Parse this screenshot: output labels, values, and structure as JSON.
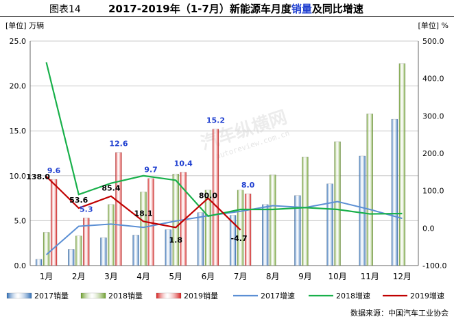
{
  "header": {
    "label": "图表14",
    "title_pre": "2017-2019年（1-7月）新能源车月度",
    "title_hl": "销量",
    "title_post": "及同比增速"
  },
  "units": {
    "left": "[单位] 万辆",
    "right": "[单位] %"
  },
  "source": "数据来源：中国汽车工业协会",
  "watermark": {
    "text": "汽车纵横网",
    "url": "autoreview.com.cn"
  },
  "colors": {
    "bar2017": "#2f6db5",
    "bar2018": "#6fa02f",
    "bar2019": "#d6201f",
    "line2017": "#5b8fd4",
    "line2018": "#18b04a",
    "line2019": "#c00000",
    "label2019": "#1f3fd0",
    "grid": "#c8c8c8"
  },
  "chart_data": {
    "type": "bar",
    "categories": [
      "1月",
      "2月",
      "3月",
      "4月",
      "5月",
      "6月",
      "7月",
      "8月",
      "9月",
      "10月",
      "11月",
      "12月"
    ],
    "y_left": {
      "ticks": [
        "0.0",
        "5.0",
        "10.0",
        "15.0",
        "20.0",
        "25.0"
      ],
      "min": 0,
      "max": 25
    },
    "y_right": {
      "ticks": [
        "-100.0",
        "0.0",
        "100.0",
        "200.0",
        "300.0",
        "400.0",
        "500.0"
      ],
      "min": -100,
      "max": 500
    },
    "grid": true,
    "legend_position": "bottom",
    "bar_series": [
      {
        "name": "2017销量",
        "values": [
          0.7,
          1.8,
          3.1,
          3.4,
          4.0,
          5.9,
          5.6,
          6.8,
          7.8,
          9.1,
          12.2,
          16.3
        ]
      },
      {
        "name": "2018销量",
        "values": [
          3.7,
          3.3,
          6.8,
          8.2,
          10.2,
          8.4,
          8.4,
          10.1,
          12.1,
          13.8,
          16.9,
          22.5
        ]
      },
      {
        "name": "2019销量",
        "values": [
          9.6,
          5.3,
          12.6,
          9.7,
          10.4,
          15.2,
          8.0
        ]
      }
    ],
    "line_series": [
      {
        "name": "2017增速",
        "values": [
          -71,
          5,
          11,
          2,
          19,
          33,
          45,
          60,
          55,
          71,
          50,
          26
        ]
      },
      {
        "name": "2018增速",
        "values": [
          443,
          90,
          120,
          140,
          128,
          32,
          50,
          50,
          55,
          50,
          38,
          39
        ]
      },
      {
        "name": "2019增速",
        "values": [
          138.0,
          53.6,
          85.4,
          18.1,
          1.8,
          80.0,
          -4.7
        ]
      }
    ],
    "bar_labels_2019": [
      "9.6",
      "5.3",
      "12.6",
      "9.7",
      "10.4",
      "15.2",
      "8.0"
    ],
    "line_labels_2019": [
      "138.0",
      "53.6",
      "85.4",
      "18.1",
      "1.8",
      "80.0",
      "-4.7"
    ]
  }
}
